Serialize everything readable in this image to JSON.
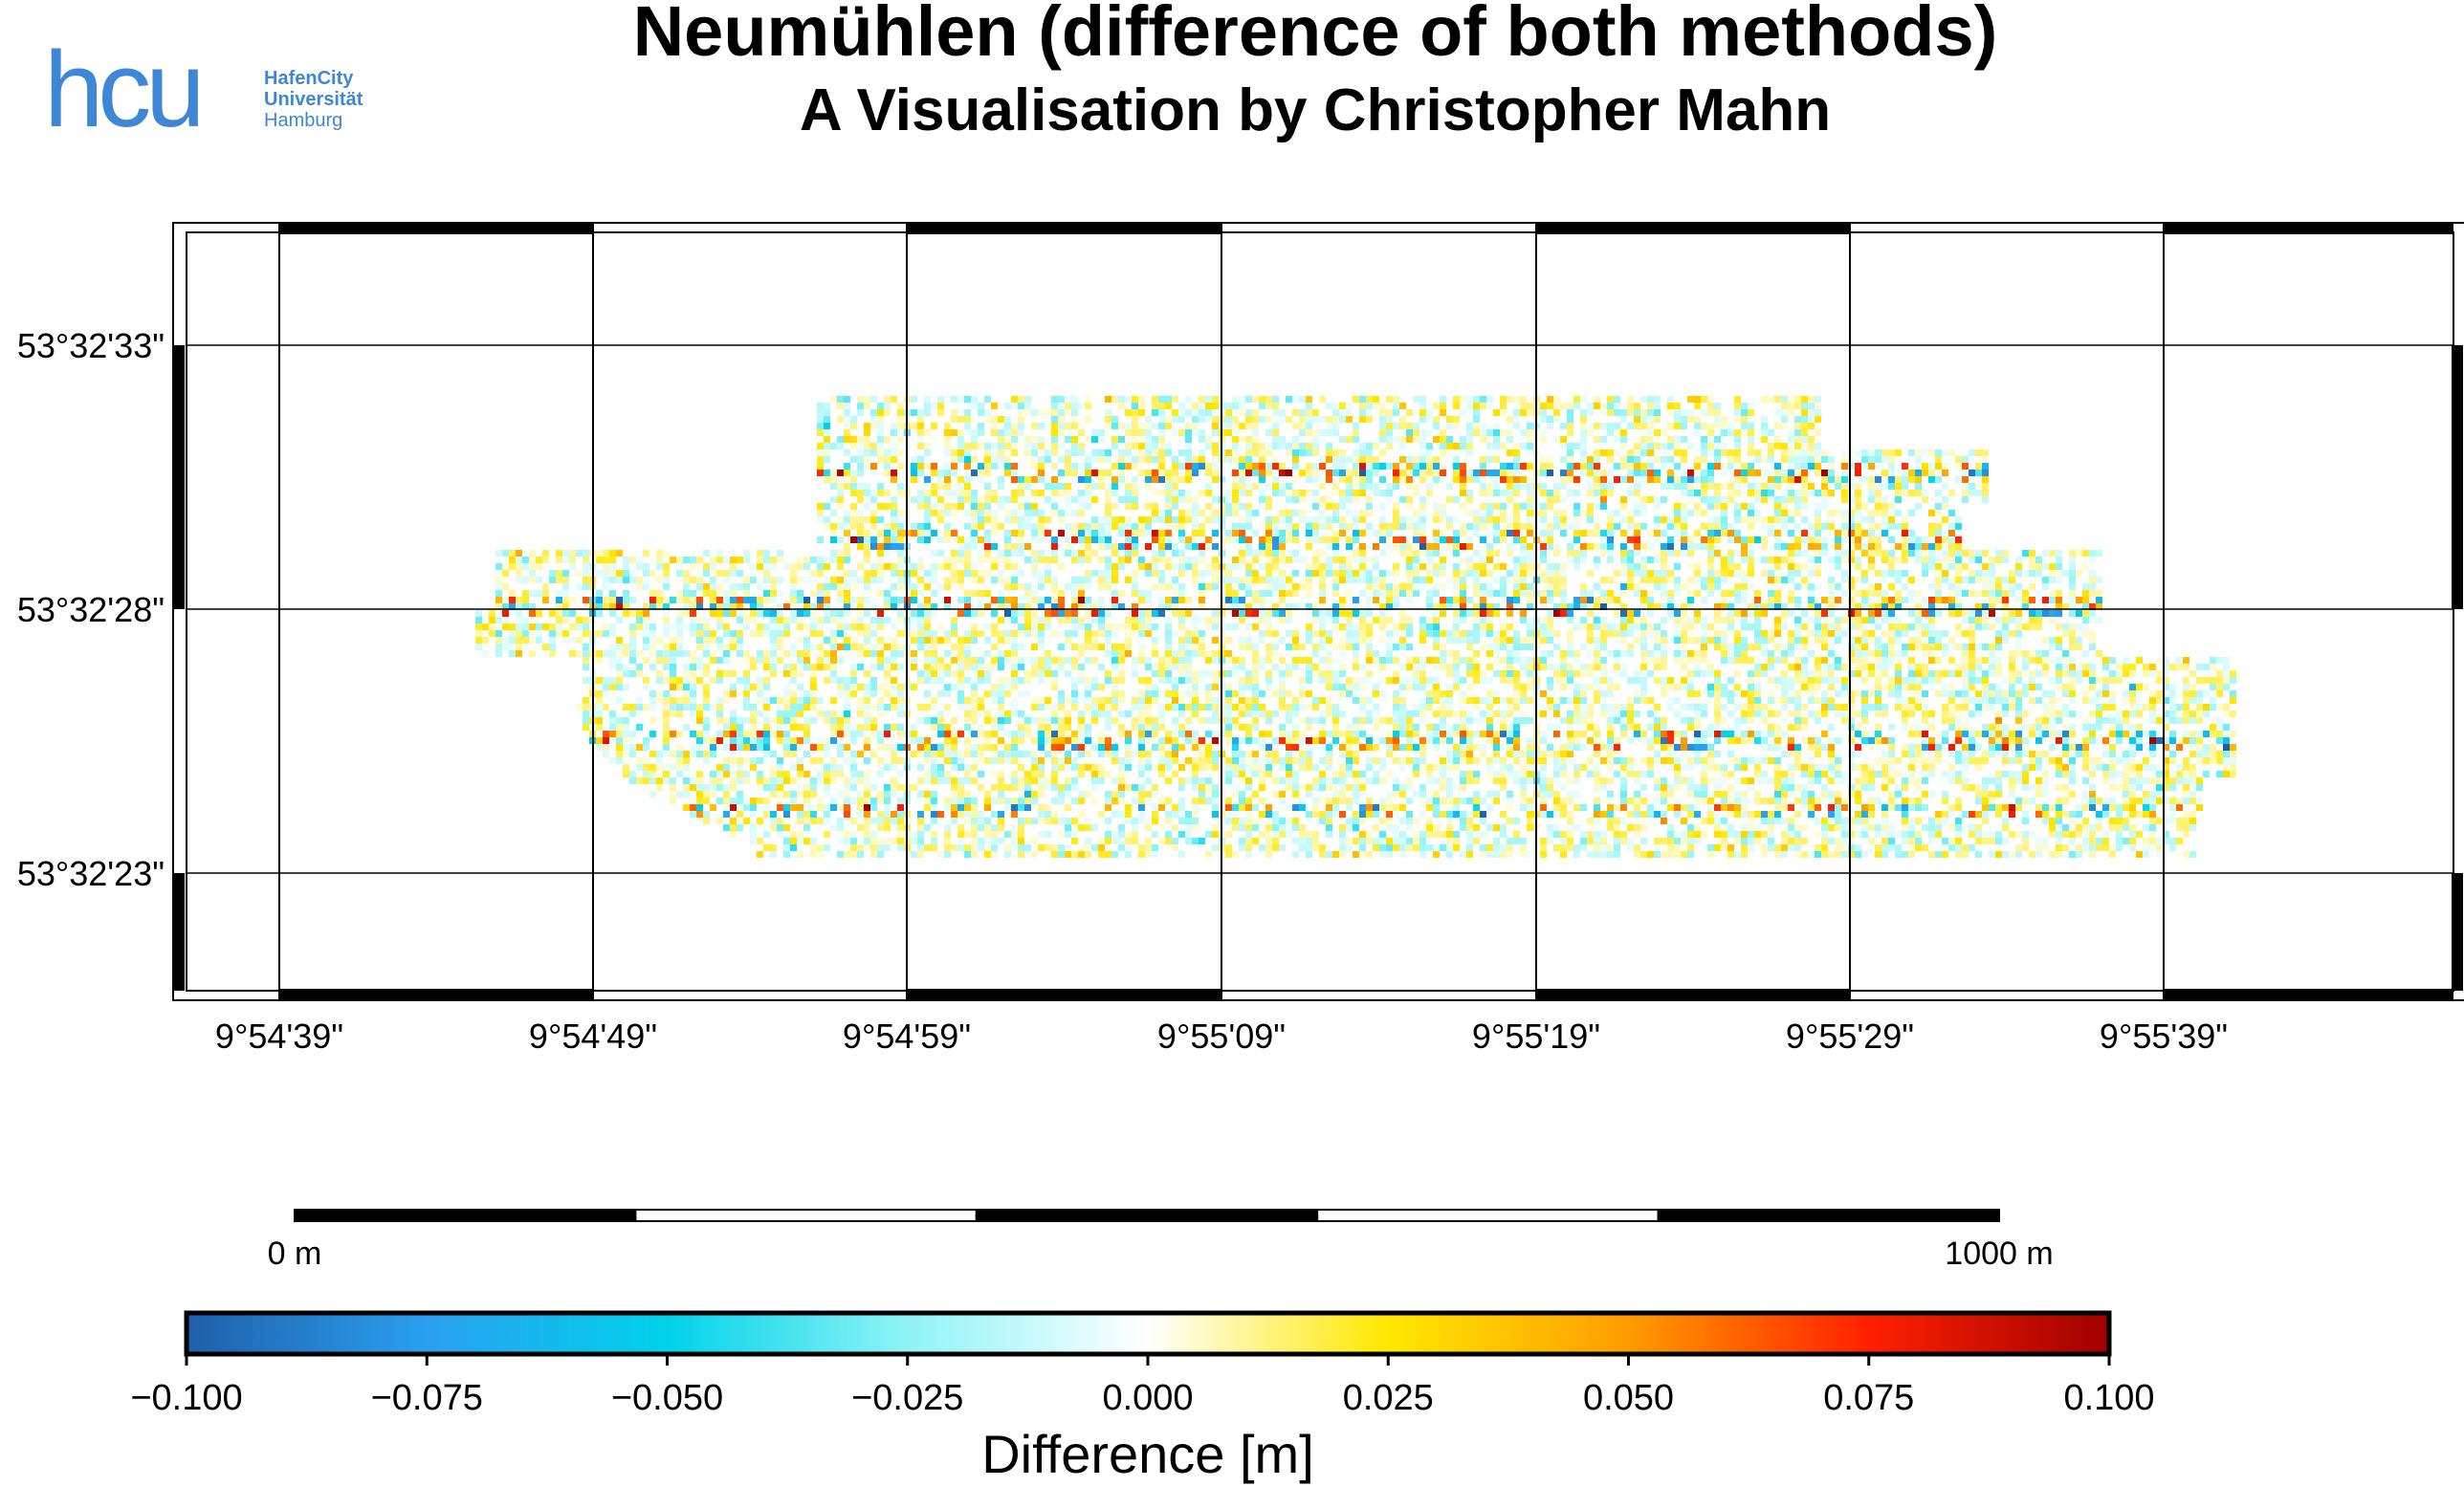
{
  "logo": {
    "mark": "hcu",
    "lines": [
      "HafenCity",
      "Universität",
      "Hamburg"
    ],
    "color": "#3f87d6"
  },
  "title": "Neumühlen (difference of both methods)",
  "subtitle": "A Visualisation by Christopher Mahn",
  "map": {
    "lon_ticks": [
      "9°54'39\"",
      "9°54'49\"",
      "9°54'59\"",
      "9°55'09\"",
      "9°55'19\"",
      "9°55'29\"",
      "9°55'39\""
    ],
    "lat_ticks": [
      "53°32'33\"",
      "53°32'28\"",
      "53°32'23\""
    ],
    "grid": true,
    "frame": "fancy"
  },
  "scale_bar": {
    "start_label": "0 m",
    "end_label": "1000 m",
    "segments": 5
  },
  "colorbar": {
    "tick_labels": [
      "−0.100",
      "−0.075",
      "−0.050",
      "−0.025",
      "0.000",
      "0.025",
      "0.050",
      "0.075",
      "0.100"
    ],
    "label": "Difference [m]",
    "range": [
      -0.1,
      0.1
    ],
    "stops": [
      {
        "v": -0.1,
        "c": "#1f5fa8"
      },
      {
        "v": -0.075,
        "c": "#2aa0f0"
      },
      {
        "v": -0.05,
        "c": "#00d2ea"
      },
      {
        "v": -0.025,
        "c": "#8ff4f6"
      },
      {
        "v": 0.0,
        "c": "#ffffff"
      },
      {
        "v": 0.025,
        "c": "#ffe800"
      },
      {
        "v": 0.05,
        "c": "#ff9c00"
      },
      {
        "v": 0.075,
        "c": "#ff2000"
      },
      {
        "v": 0.1,
        "c": "#a00000"
      }
    ]
  }
}
